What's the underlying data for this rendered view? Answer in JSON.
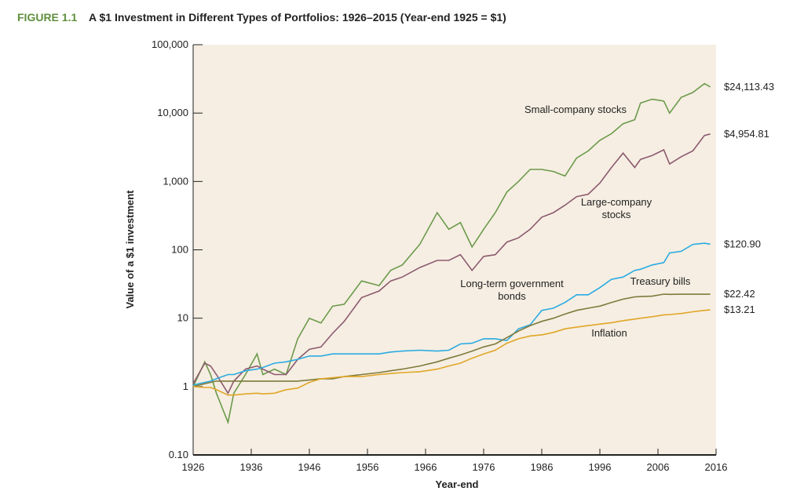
{
  "chart_data": {
    "type": "line",
    "figure_label": "FIGURE 1.1",
    "title": "A $1 Investment in Different Types of Portfolios: 1926–2015 (Year-end 1925 = $1)",
    "x_label": "Year-end",
    "y_label": "Value of a $1 investment",
    "log_y": true,
    "background": "#f6eee2",
    "xlim": [
      1926,
      2016
    ],
    "xticks": [
      1926,
      1936,
      1946,
      1956,
      1966,
      1976,
      1986,
      1996,
      2006,
      2016
    ],
    "ylim": [
      0.1,
      100000
    ],
    "yticks": [
      {
        "value": 0.1,
        "label": "0.10"
      },
      1,
      10,
      100,
      {
        "value": 1000,
        "label": "1,000"
      },
      {
        "value": 10000,
        "label": "10,000"
      },
      {
        "value": 100000,
        "label": "100,000"
      }
    ],
    "x": [
      1926,
      1928,
      1929,
      1930,
      1932,
      1933,
      1935,
      1937,
      1938,
      1940,
      1942,
      1944,
      1946,
      1948,
      1950,
      1952,
      1955,
      1958,
      1960,
      1962,
      1965,
      1968,
      1970,
      1972,
      1974,
      1976,
      1978,
      1980,
      1982,
      1984,
      1986,
      1988,
      1990,
      1992,
      1994,
      1996,
      1998,
      2000,
      2002,
      2003,
      2005,
      2007,
      2008,
      2010,
      2012,
      2014,
      2015
    ],
    "series": [
      {
        "name": "Small-company stocks",
        "color": "#6b9a4b",
        "values": [
          1,
          2.3,
          1.5,
          0.8,
          0.3,
          0.8,
          1.5,
          3,
          1.5,
          1.8,
          1.5,
          5,
          10,
          8.5,
          15,
          16,
          35,
          30,
          50,
          60,
          120,
          350,
          200,
          250,
          110,
          200,
          350,
          700,
          1000,
          1500,
          1500,
          1400,
          1200,
          2200,
          2800,
          4000,
          5000,
          7000,
          8000,
          14000,
          16000,
          15000,
          10000,
          17000,
          20000,
          27000,
          24113.43
        ],
        "value_labels": [
          null,
          null,
          null,
          null,
          null,
          null,
          null,
          null,
          null,
          null,
          null,
          null,
          null,
          null,
          null,
          null,
          null,
          null,
          null,
          null,
          null,
          null,
          null,
          null,
          null,
          null,
          null,
          null,
          null,
          null,
          null,
          null,
          null,
          null,
          null,
          null,
          null,
          null,
          null,
          null,
          null,
          null,
          null,
          null,
          null,
          null,
          "$24,113.43"
        ]
      },
      {
        "name": "Large-company stocks",
        "color": "#8c5b70",
        "values": [
          1.1,
          2.2,
          2.0,
          1.5,
          0.8,
          1.2,
          1.8,
          2,
          1.8,
          1.5,
          1.5,
          2.5,
          3.5,
          3.8,
          6,
          9,
          20,
          25,
          35,
          40,
          55,
          70,
          70,
          85,
          50,
          80,
          85,
          130,
          150,
          200,
          300,
          350,
          450,
          600,
          650,
          950,
          1600,
          2600,
          1600,
          2100,
          2400,
          2900,
          1800,
          2300,
          2800,
          4700,
          4954.81
        ],
        "value_labels": [
          null,
          null,
          null,
          null,
          null,
          null,
          null,
          null,
          null,
          null,
          null,
          null,
          null,
          null,
          null,
          null,
          null,
          null,
          null,
          null,
          null,
          null,
          null,
          null,
          null,
          null,
          null,
          null,
          null,
          null,
          null,
          null,
          null,
          null,
          null,
          null,
          null,
          null,
          null,
          null,
          null,
          null,
          null,
          null,
          null,
          null,
          "$4,954.81"
        ]
      },
      {
        "name": "Long-term government bonds",
        "color": "#29abe2",
        "values": [
          1.05,
          1.15,
          1.2,
          1.3,
          1.5,
          1.5,
          1.7,
          1.8,
          1.9,
          2.2,
          2.3,
          2.5,
          2.8,
          2.8,
          3.0,
          3.0,
          3.0,
          3.0,
          3.2,
          3.3,
          3.4,
          3.3,
          3.4,
          4.2,
          4.3,
          5,
          5,
          4.7,
          7,
          8,
          13,
          14,
          17,
          22,
          22,
          28,
          37,
          40,
          50,
          52,
          60,
          65,
          90,
          95,
          120,
          125,
          120.9
        ],
        "value_labels": [
          null,
          null,
          null,
          null,
          null,
          null,
          null,
          null,
          null,
          null,
          null,
          null,
          null,
          null,
          null,
          null,
          null,
          null,
          null,
          null,
          null,
          null,
          null,
          null,
          null,
          null,
          null,
          null,
          null,
          null,
          null,
          null,
          null,
          null,
          null,
          null,
          null,
          null,
          null,
          null,
          null,
          null,
          null,
          null,
          null,
          null,
          "$120.90"
        ]
      },
      {
        "name": "Treasury bills",
        "color": "#7f7a3c",
        "values": [
          1.0,
          1.1,
          1.15,
          1.2,
          1.2,
          1.2,
          1.2,
          1.2,
          1.2,
          1.2,
          1.2,
          1.2,
          1.25,
          1.3,
          1.3,
          1.4,
          1.5,
          1.6,
          1.7,
          1.8,
          2.0,
          2.3,
          2.6,
          2.9,
          3.3,
          3.8,
          4.2,
          5.2,
          6.5,
          7.8,
          9,
          10,
          11.5,
          13,
          14,
          15,
          17,
          19,
          20.5,
          20.7,
          21,
          22.5,
          22.3,
          22.4,
          22.4,
          22.42,
          22.42
        ],
        "value_labels": [
          null,
          null,
          null,
          null,
          null,
          null,
          null,
          null,
          null,
          null,
          null,
          null,
          null,
          null,
          null,
          null,
          null,
          null,
          null,
          null,
          null,
          null,
          null,
          null,
          null,
          null,
          null,
          null,
          null,
          null,
          null,
          null,
          null,
          null,
          null,
          null,
          null,
          null,
          null,
          null,
          null,
          null,
          null,
          null,
          null,
          null,
          "$22.42"
        ]
      },
      {
        "name": "Inflation",
        "color": "#e0a628",
        "values": [
          1.0,
          0.97,
          0.97,
          0.9,
          0.75,
          0.75,
          0.78,
          0.8,
          0.78,
          0.8,
          0.9,
          0.95,
          1.15,
          1.3,
          1.35,
          1.4,
          1.4,
          1.5,
          1.55,
          1.6,
          1.65,
          1.8,
          2.0,
          2.2,
          2.6,
          3.0,
          3.4,
          4.3,
          5,
          5.5,
          5.7,
          6.2,
          7,
          7.4,
          7.8,
          8.2,
          8.6,
          9.2,
          9.7,
          10,
          10.5,
          11.2,
          11.3,
          11.7,
          12.4,
          13,
          13.21
        ],
        "value_labels": [
          null,
          null,
          null,
          null,
          null,
          null,
          null,
          null,
          null,
          null,
          null,
          null,
          null,
          null,
          null,
          null,
          null,
          null,
          null,
          null,
          null,
          null,
          null,
          null,
          null,
          null,
          null,
          null,
          null,
          null,
          null,
          null,
          null,
          null,
          null,
          null,
          null,
          null,
          null,
          null,
          null,
          null,
          null,
          null,
          null,
          null,
          "$13.21"
        ]
      }
    ]
  }
}
